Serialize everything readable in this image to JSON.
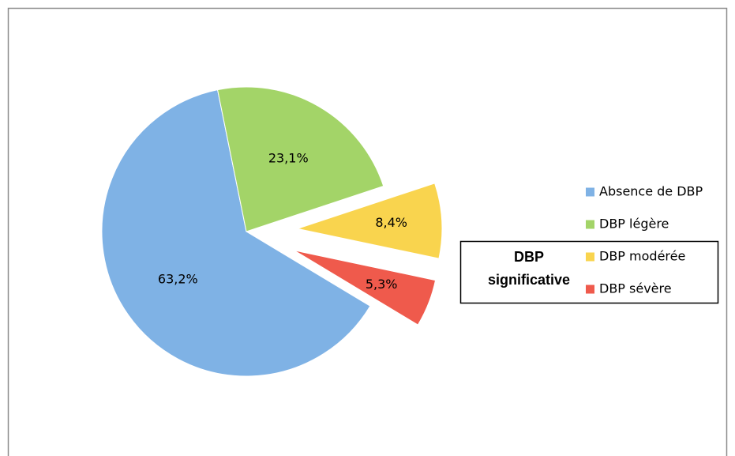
{
  "chart_data": {
    "type": "pie",
    "categories": [
      "Absence de DBP",
      "DBP légère",
      "DBP modérée",
      "DBP sévère"
    ],
    "values": [
      63.2,
      23.1,
      8.4,
      5.3
    ],
    "value_labels": [
      "63,2%",
      "23,1%",
      "8,4%",
      "5,3%"
    ],
    "colors": [
      "#7fb2e5",
      "#a3d468",
      "#f9d44e",
      "#ef5a4c"
    ],
    "exploded": [
      false,
      false,
      true,
      true
    ],
    "legend": "right",
    "annotation": [
      "DBP",
      "significative"
    ]
  }
}
